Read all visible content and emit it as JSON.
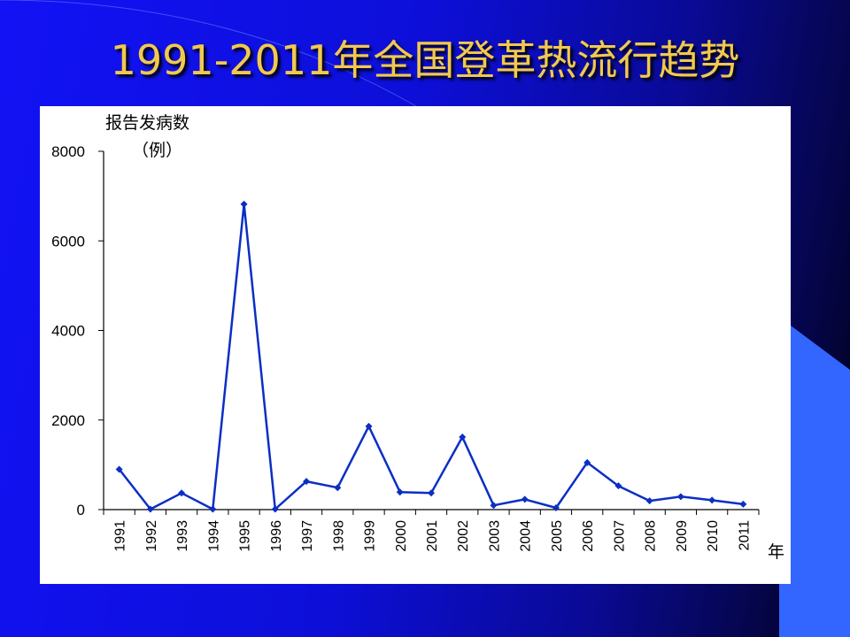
{
  "title": "1991-2011年全国登革热流行趋势",
  "colors": {
    "line": "#0b2fc4",
    "title": "#f2c94c",
    "deco": "#3366ff"
  },
  "chart_data": {
    "type": "line",
    "title": "",
    "ylabel_line1": "报告发病数",
    "ylabel_line2": "（例）",
    "xlabel": "年",
    "ylim": [
      0,
      8000
    ],
    "yticks": [
      "0",
      "2000",
      "4000",
      "6000",
      "8000"
    ],
    "categories": [
      "1991",
      "1992",
      "1993",
      "1994",
      "1995",
      "1996",
      "1997",
      "1998",
      "1999",
      "2000",
      "2001",
      "2002",
      "2003",
      "2004",
      "2005",
      "2006",
      "2007",
      "2008",
      "2009",
      "2010",
      "2011"
    ],
    "series": [
      {
        "values": [
          900,
          10,
          370,
          10,
          6820,
          10,
          630,
          490,
          1860,
          390,
          370,
          1620,
          95,
          230,
          40,
          1050,
          530,
          195,
          290,
          210,
          120
        ]
      }
    ],
    "marker": "diamond",
    "grid": false,
    "legend": "none"
  }
}
